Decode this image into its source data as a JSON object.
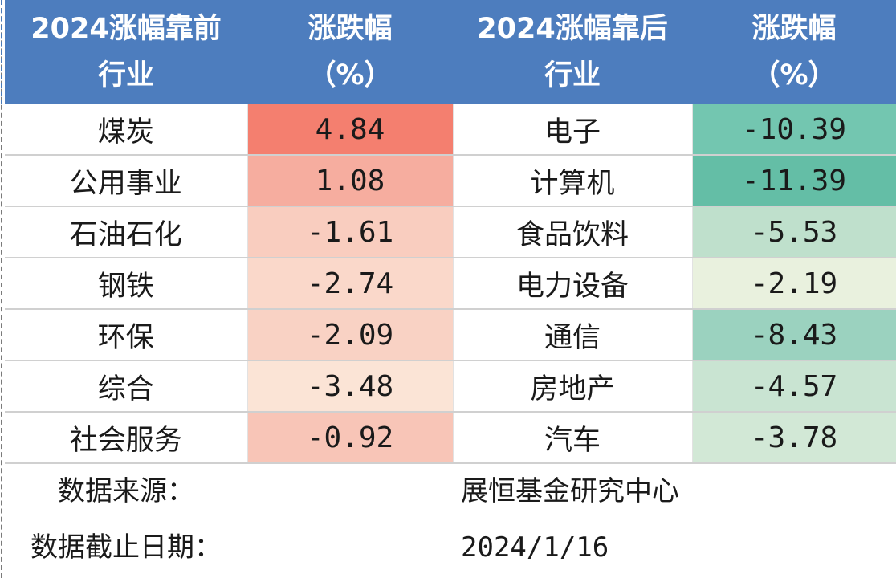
{
  "header": {
    "col1": [
      "2024涨幅靠前",
      "行业"
    ],
    "col2": [
      "涨跌幅",
      "（%）"
    ],
    "col3": [
      "2024涨幅靠后",
      "行业"
    ],
    "col4": [
      "涨跌幅",
      "（%）"
    ]
  },
  "rows": [
    {
      "top_industry": "煤炭",
      "top_change": "4.84",
      "top_color": "#f47f6f",
      "bottom_industry": "电子",
      "bottom_change": "-10.39",
      "bottom_color": "#73c6b0"
    },
    {
      "top_industry": "公用事业",
      "top_change": "1.08",
      "top_color": "#f6ad9f",
      "bottom_industry": "计算机",
      "bottom_change": "-11.39",
      "bottom_color": "#64bea6"
    },
    {
      "top_industry": "石油石化",
      "top_change": "-1.61",
      "top_color": "#f9cdbf",
      "bottom_industry": "食品饮料",
      "bottom_change": "-5.53",
      "bottom_color": "#bfe0cc"
    },
    {
      "top_industry": "钢铁",
      "top_change": "-2.74",
      "top_color": "#fad8ca",
      "bottom_industry": "电力设备",
      "bottom_change": "-2.19",
      "bottom_color": "#e9f1de"
    },
    {
      "top_industry": "环保",
      "top_change": "-2.09",
      "top_color": "#f9d2c4",
      "bottom_industry": "通信",
      "bottom_change": "-8.43",
      "bottom_color": "#9bd2bf"
    },
    {
      "top_industry": "综合",
      "top_change": "-3.48",
      "top_color": "#fbe4d6",
      "bottom_industry": "房地产",
      "bottom_change": "-4.57",
      "bottom_color": "#c9e4d2"
    },
    {
      "top_industry": "社会服务",
      "top_change": "-0.92",
      "top_color": "#f8c5b7",
      "bottom_industry": "汽车",
      "bottom_change": "-3.78",
      "bottom_color": "#d2e8d6"
    }
  ],
  "footer": {
    "source_label": "数据来源：",
    "source_value": "展恒基金研究中心",
    "date_label": "数据截止日期：",
    "date_value": "2024/1/16"
  }
}
